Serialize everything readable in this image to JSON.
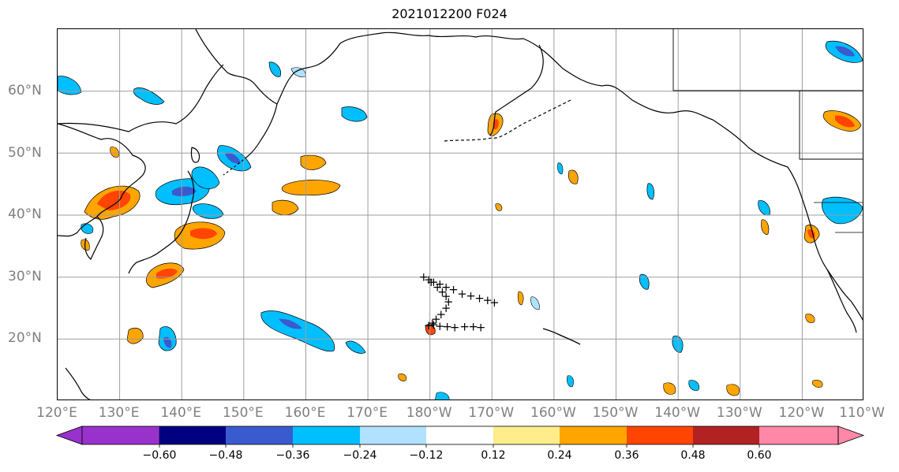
{
  "title": "2021012200 F024",
  "colors": {
    "coast": "#000000",
    "grid": "#9e9e9e",
    "track": "#000000"
  },
  "map": {
    "lon_labels": [
      "120°E",
      "130°E",
      "140°E",
      "150°E",
      "160°E",
      "170°E",
      "180°W",
      "170°W",
      "160°W",
      "150°W",
      "140°W",
      "130°W",
      "120°W",
      "110°W"
    ],
    "lat_labels": [
      "60°N",
      "50°N",
      "40°N",
      "30°N",
      "20°N"
    ]
  },
  "colorbar": {
    "colors": [
      "#9932cc",
      "#000080",
      "#3a5bcf",
      "#00bfff",
      "#b0e2ff",
      "#ffffff",
      "#ffec8b",
      "#ffa500",
      "#ff4500",
      "#b22222",
      "#ff87a8"
    ],
    "extend_low_color": "#9932cc",
    "extend_high_color": "#ff87a8",
    "tick_labels": [
      "−0.60",
      "−0.48",
      "−0.36",
      "−0.24",
      "−0.12",
      "0.12",
      "0.24",
      "0.36",
      "0.48",
      "0.60"
    ]
  },
  "track_markers": {
    "symbol": "+",
    "points": [
      [
        179.0,
        30
      ],
      [
        179.8,
        29.6
      ],
      [
        180.6,
        29.2
      ],
      [
        181.6,
        28.9
      ],
      [
        182.6,
        28.4
      ],
      [
        183.8,
        28.0
      ],
      [
        185.2,
        27.3
      ],
      [
        186.6,
        27.0
      ],
      [
        188.0,
        26.6
      ],
      [
        189.3,
        26.3
      ],
      [
        190.4,
        25.9
      ],
      [
        180.2,
        29.2
      ],
      [
        181.2,
        28.4
      ],
      [
        182.0,
        27.6
      ],
      [
        182.6,
        26.9
      ],
      [
        183.0,
        26.0
      ],
      [
        182.6,
        25.0
      ],
      [
        181.8,
        24.0
      ],
      [
        181.0,
        23.2
      ],
      [
        180.4,
        22.6
      ],
      [
        179.8,
        22.2
      ],
      [
        180.6,
        22.3
      ],
      [
        181.6,
        22.1
      ],
      [
        182.8,
        22.0
      ],
      [
        184.0,
        21.9
      ],
      [
        185.6,
        22.0
      ],
      [
        187.0,
        22.0
      ],
      [
        188.2,
        21.9
      ]
    ]
  }
}
